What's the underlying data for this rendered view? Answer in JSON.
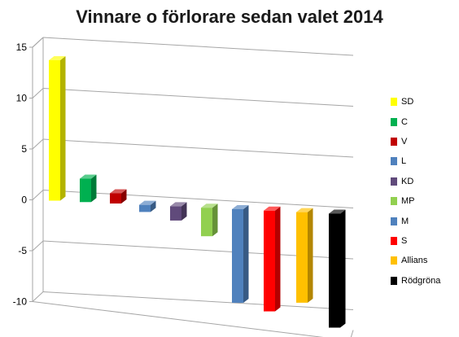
{
  "chart_data": {
    "type": "bar",
    "title": "Vinnare o förlorare sedan valet 2014",
    "xlabel": "",
    "ylabel": "",
    "ylim": [
      -10,
      15
    ],
    "yticks": [
      15,
      10,
      5,
      0,
      -5,
      -10
    ],
    "grid": true,
    "legend_position": "right",
    "categories": [
      "SD",
      "C",
      "V",
      "L",
      "KD",
      "MP",
      "M",
      "S",
      "Allians",
      "Rödgröna"
    ],
    "values": [
      13.8,
      2.3,
      1.0,
      -0.7,
      -1.4,
      -2.8,
      -9.2,
      -9.9,
      -8.9,
      -11.2
    ],
    "colors": [
      "#FFFF00",
      "#00B050",
      "#C00000",
      "#4F81BD",
      "#604A7B",
      "#92D050",
      "#4F81BD",
      "#FF0000",
      "#FFC000",
      "#000000"
    ]
  }
}
